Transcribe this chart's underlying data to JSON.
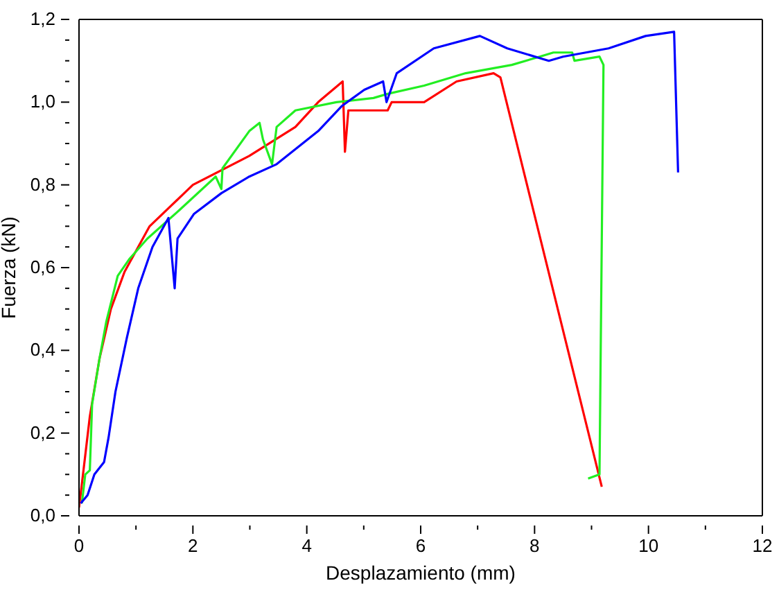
{
  "chart_data": {
    "type": "line",
    "xlabel": "Desplazamiento (mm)",
    "ylabel": "Fuerza (kN)",
    "xlim": [
      0,
      12
    ],
    "ylim": [
      0,
      1.2
    ],
    "xticks": [
      0,
      {
        "value": 1,
        "label": null
      },
      2,
      {
        "value": 3,
        "label": null
      },
      4,
      {
        "value": 5,
        "label": null
      },
      6,
      {
        "value": 7,
        "label": null
      },
      8,
      {
        "value": 9,
        "label": null
      },
      10,
      {
        "value": 11,
        "label": null
      },
      12
    ],
    "yticks": [
      {
        "value": 0,
        "label": "0,0"
      },
      {
        "value": 0.05,
        "label": null
      },
      {
        "value": 0.1,
        "label": null
      },
      {
        "value": 0.15,
        "label": null
      },
      {
        "value": 0.2,
        "label": "0,2"
      },
      {
        "value": 0.25,
        "label": null
      },
      {
        "value": 0.3,
        "label": null
      },
      {
        "value": 0.35,
        "label": null
      },
      {
        "value": 0.4,
        "label": "0,4"
      },
      {
        "value": 0.45,
        "label": null
      },
      {
        "value": 0.5,
        "label": null
      },
      {
        "value": 0.55,
        "label": null
      },
      {
        "value": 0.6,
        "label": "0,6"
      },
      {
        "value": 0.65,
        "label": null
      },
      {
        "value": 0.7,
        "label": null
      },
      {
        "value": 0.75,
        "label": null
      },
      {
        "value": 0.8,
        "label": "0,8"
      },
      {
        "value": 0.85,
        "label": null
      },
      {
        "value": 0.9,
        "label": null
      },
      {
        "value": 0.95,
        "label": null
      },
      {
        "value": 1.0,
        "label": "1,0"
      },
      {
        "value": 1.05,
        "label": null
      },
      {
        "value": 1.1,
        "label": null
      },
      {
        "value": 1.15,
        "label": null
      },
      {
        "value": 1.2,
        "label": "1,2"
      }
    ],
    "marker": "none",
    "line_style": "solid",
    "series": [
      {
        "color": "#ff0000",
        "x": [
          0,
          0.07,
          0.19,
          0.36,
          0.56,
          0.8,
          1.24,
          2,
          2.99,
          3.8,
          4.2,
          4.63,
          4.67,
          4.73,
          5.42,
          5.49,
          6.06,
          6.63,
          7.28,
          7.4,
          9.18
        ],
        "values": [
          0.02,
          0.1,
          0.24,
          0.38,
          0.5,
          0.59,
          0.7,
          0.8,
          0.87,
          0.94,
          1.0,
          1.05,
          0.88,
          0.98,
          0.98,
          1.0,
          1.0,
          1.05,
          1.07,
          1.06,
          0.07
        ]
      },
      {
        "color": "#22ee22",
        "x": [
          0.05,
          0.11,
          0.19,
          0.23,
          0.36,
          0.48,
          0.68,
          0.88,
          1.2,
          1.77,
          2.4,
          2.5,
          2.52,
          2.99,
          3.17,
          3.23,
          3.39,
          3.47,
          3.8,
          4.52,
          5.17,
          5.42,
          6.06,
          6.79,
          7.6,
          8.09,
          8.33,
          8.66,
          8.7,
          9.14,
          9.21,
          9.14,
          8.94
        ],
        "values": [
          0.03,
          0.1,
          0.11,
          0.27,
          0.38,
          0.47,
          0.58,
          0.62,
          0.67,
          0.74,
          0.82,
          0.79,
          0.84,
          0.93,
          0.95,
          0.91,
          0.85,
          0.94,
          0.98,
          1.0,
          1.01,
          1.02,
          1.04,
          1.07,
          1.09,
          1.11,
          1.12,
          1.12,
          1.1,
          1.11,
          1.09,
          0.1,
          0.09
        ]
      },
      {
        "color": "#0000ff",
        "x": [
          0.03,
          0.15,
          0.27,
          0.44,
          0.52,
          0.64,
          0.84,
          1.04,
          1.29,
          1.57,
          1.68,
          1.73,
          2.02,
          2.5,
          2.99,
          3.47,
          4.2,
          4.61,
          5.01,
          5.34,
          5.4,
          5.58,
          6.23,
          7.04,
          7.52,
          8.25,
          8.5,
          9.3,
          9.95,
          10.45,
          10.52
        ],
        "values": [
          0.03,
          0.05,
          0.1,
          0.13,
          0.19,
          0.3,
          0.43,
          0.55,
          0.65,
          0.72,
          0.55,
          0.67,
          0.73,
          0.78,
          0.82,
          0.85,
          0.93,
          0.99,
          1.03,
          1.05,
          1.0,
          1.07,
          1.13,
          1.16,
          1.13,
          1.1,
          1.11,
          1.13,
          1.16,
          1.17,
          0.83
        ]
      }
    ]
  }
}
